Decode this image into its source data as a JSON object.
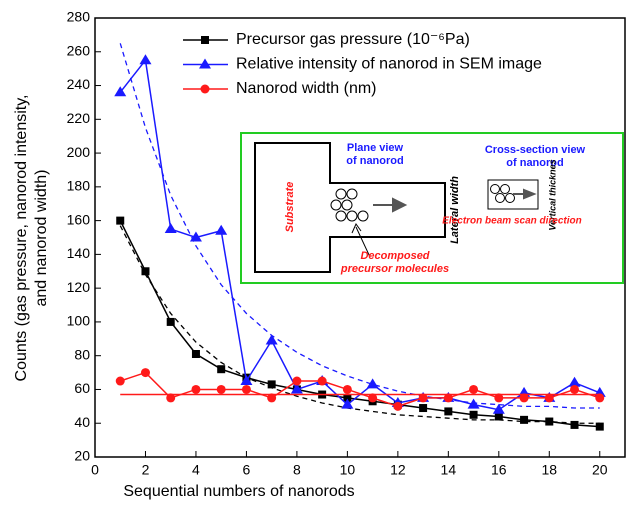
{
  "chart_data": {
    "type": "line",
    "x_label": "Sequential numbers of nanorods",
    "y_label": [
      "Counts (gas pressure, nanorod intensity,",
      "and nanorod width)"
    ],
    "x": [
      1,
      2,
      3,
      4,
      5,
      6,
      7,
      8,
      9,
      10,
      11,
      12,
      13,
      14,
      15,
      16,
      17,
      18,
      19,
      20
    ],
    "series": [
      {
        "name": "Precursor gas pressure (10⁻⁶Pa)",
        "color": "#000000",
        "marker": "square",
        "values": [
          160,
          130,
          100,
          81,
          72,
          67,
          63,
          60,
          57,
          55,
          53,
          51,
          49,
          47,
          45,
          44,
          42,
          41,
          39,
          38
        ],
        "fit": [
          157,
          128,
          105,
          88,
          76,
          67,
          61,
          56,
          52,
          49,
          47,
          45,
          44,
          43,
          42,
          42,
          41,
          41,
          40,
          40
        ]
      },
      {
        "name": "Relative intensity of nanorod in SEM image",
        "color": "#1a1aff",
        "marker": "triangle",
        "values": [
          236,
          255,
          155,
          150,
          154,
          65,
          89,
          60,
          65,
          51,
          63,
          52,
          55,
          55,
          51,
          48,
          58,
          55,
          64,
          58
        ],
        "fit": [
          265,
          215,
          175,
          145,
          122,
          105,
          92,
          82,
          74,
          68,
          63,
          59,
          56,
          54,
          52,
          51,
          50,
          50,
          49,
          49
        ]
      },
      {
        "name": "Nanorod width (nm)",
        "color": "#ff1a1a",
        "marker": "circle",
        "values": [
          65,
          70,
          55,
          60,
          60,
          60,
          55,
          65,
          65,
          60,
          55,
          50,
          55,
          55,
          60,
          55,
          55,
          55,
          60,
          55
        ],
        "fit": [
          57,
          57,
          57,
          57,
          57,
          57,
          57,
          57,
          57,
          57,
          57,
          57,
          57,
          57,
          57,
          57,
          57,
          57,
          57,
          57
        ]
      }
    ],
    "xlim": [
      0,
      21
    ],
    "xticks": [
      0,
      2,
      4,
      6,
      8,
      10,
      12,
      14,
      16,
      18,
      20
    ],
    "ylim": [
      20,
      280
    ],
    "yticks": [
      20,
      40,
      60,
      80,
      100,
      120,
      140,
      160,
      180,
      200,
      220,
      240,
      260,
      280
    ],
    "inset": {
      "substrate": "Substrate",
      "plane_view": [
        "Plane view",
        "of nanorod"
      ],
      "lateral": "Lateral width",
      "decomposed": [
        "Decomposed",
        "precursor molecules"
      ],
      "cross_section": [
        "Cross-section view",
        "of nanorod"
      ],
      "vertical": "Vertical thicknes",
      "scan": "Electron beam scan direction"
    }
  }
}
